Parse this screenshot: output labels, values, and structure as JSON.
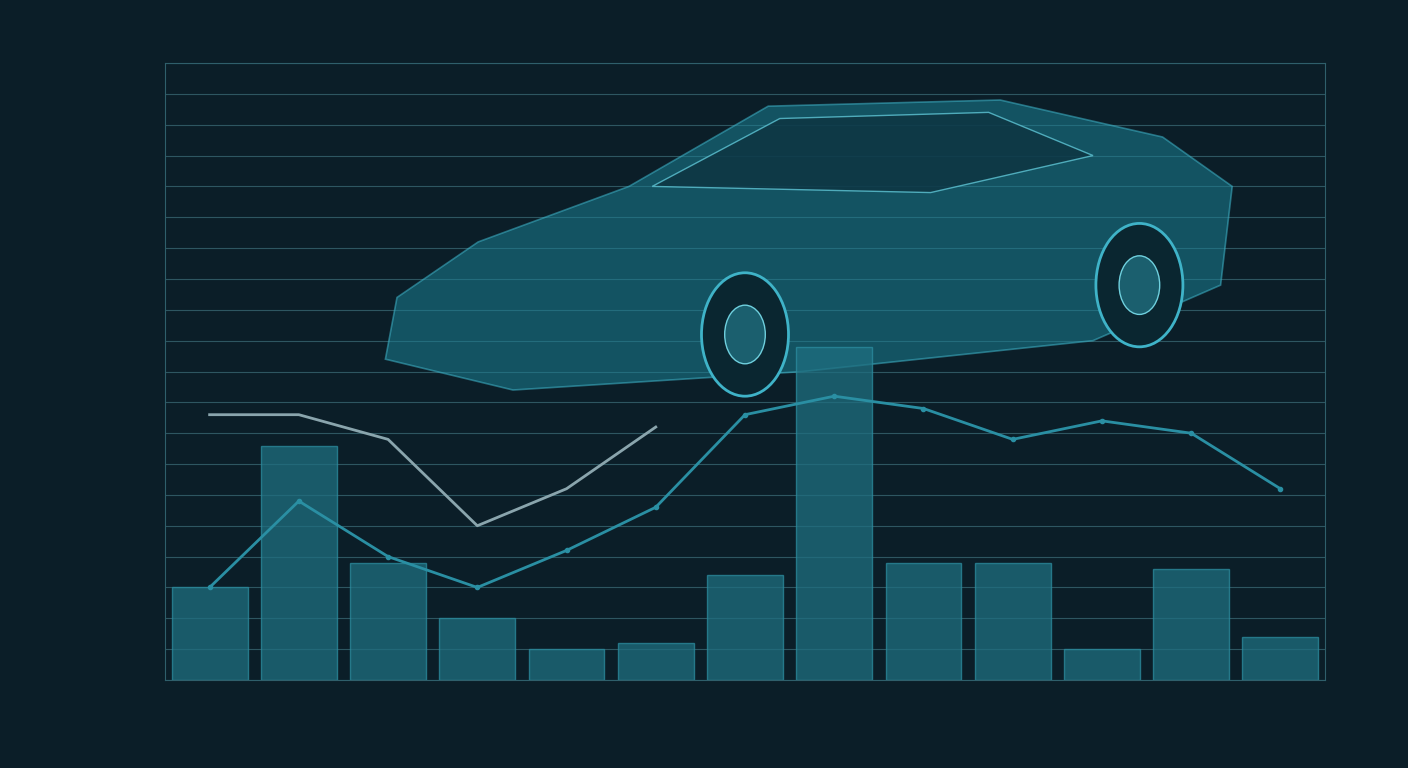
{
  "chart_data": {
    "type": "bar",
    "categories": [
      null,
      null,
      null,
      null,
      null,
      null,
      null,
      null,
      null,
      null,
      null,
      null,
      null
    ],
    "series": [
      {
        "type": "bar",
        "color": "#1f6f80",
        "values": [
          15,
          38,
          19,
          10,
          5,
          6,
          17,
          54,
          19,
          19,
          5,
          18,
          7
        ]
      },
      {
        "type": "line",
        "color": "#8aa5ad",
        "values": [
          43,
          43,
          39,
          25,
          31,
          41,
          null,
          null,
          null,
          null,
          null,
          null,
          null
        ]
      },
      {
        "type": "line",
        "color": "#2a8fa3",
        "marker": "o",
        "values": [
          15,
          29,
          20,
          15,
          21,
          28,
          43,
          46,
          44,
          39,
          42,
          40,
          31
        ]
      }
    ],
    "ylim": [
      0,
      100
    ],
    "yticks": [
      0,
      5,
      10,
      15,
      20,
      25,
      30,
      35,
      40,
      45,
      50,
      55,
      60,
      65,
      70,
      75,
      80,
      85,
      90,
      95,
      100
    ],
    "grid": true,
    "tick_labels": false
  }
}
